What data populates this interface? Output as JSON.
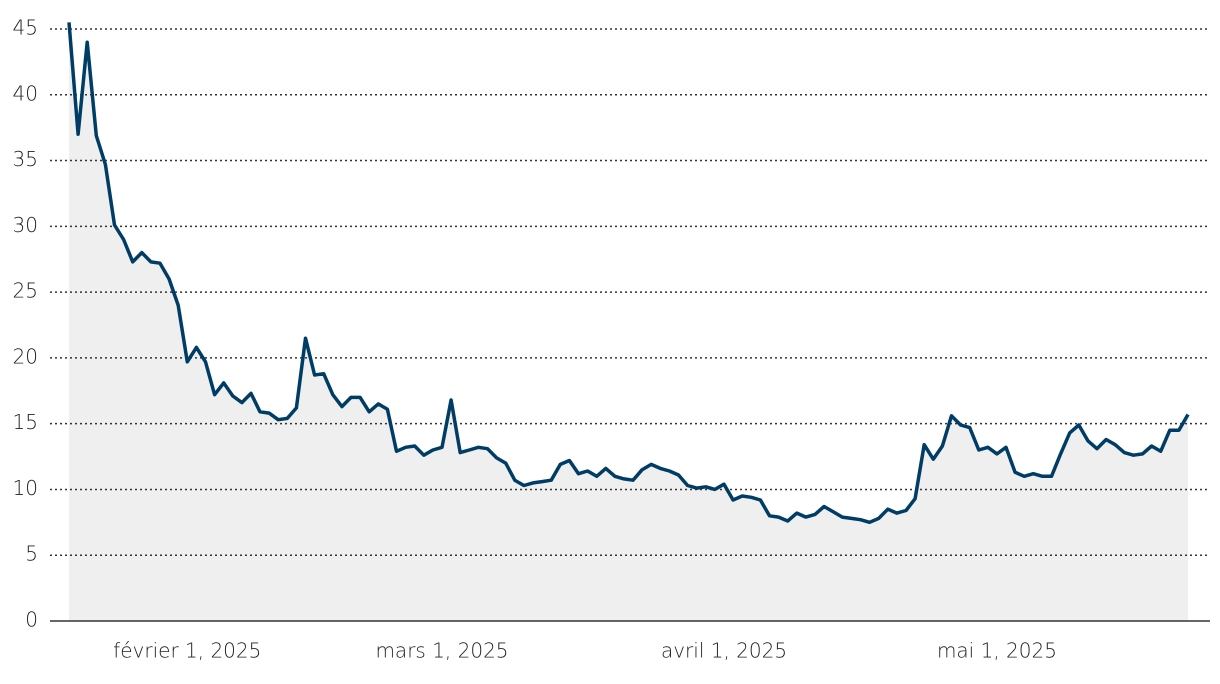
{
  "chart_data": {
    "type": "area",
    "x": [
      "2025-01-19",
      "2025-01-20",
      "2025-01-21",
      "2025-01-22",
      "2025-01-23",
      "2025-01-24",
      "2025-01-25",
      "2025-01-26",
      "2025-01-27",
      "2025-01-28",
      "2025-01-29",
      "2025-01-30",
      "2025-01-31",
      "2025-02-01",
      "2025-02-02",
      "2025-02-03",
      "2025-02-04",
      "2025-02-05",
      "2025-02-06",
      "2025-02-07",
      "2025-02-08",
      "2025-02-09",
      "2025-02-10",
      "2025-02-11",
      "2025-02-12",
      "2025-02-13",
      "2025-02-14",
      "2025-02-15",
      "2025-02-16",
      "2025-02-17",
      "2025-02-18",
      "2025-02-19",
      "2025-02-20",
      "2025-02-21",
      "2025-02-22",
      "2025-02-23",
      "2025-02-24",
      "2025-02-25",
      "2025-02-26",
      "2025-02-27",
      "2025-02-28",
      "2025-03-01",
      "2025-03-02",
      "2025-03-03",
      "2025-03-04",
      "2025-03-05",
      "2025-03-06",
      "2025-03-07",
      "2025-03-08",
      "2025-03-09",
      "2025-03-10",
      "2025-03-11",
      "2025-03-12",
      "2025-03-13",
      "2025-03-14",
      "2025-03-15",
      "2025-03-16",
      "2025-03-17",
      "2025-03-18",
      "2025-03-19",
      "2025-03-20",
      "2025-03-21",
      "2025-03-22",
      "2025-03-23",
      "2025-03-24",
      "2025-03-25",
      "2025-03-26",
      "2025-03-27",
      "2025-03-28",
      "2025-03-29",
      "2025-03-30",
      "2025-03-31",
      "2025-04-01",
      "2025-04-02",
      "2025-04-03",
      "2025-04-04",
      "2025-04-05",
      "2025-04-06",
      "2025-04-07",
      "2025-04-08",
      "2025-04-09",
      "2025-04-10",
      "2025-04-11",
      "2025-04-12",
      "2025-04-13",
      "2025-04-14",
      "2025-04-15",
      "2025-04-16",
      "2025-04-17",
      "2025-04-18",
      "2025-04-19",
      "2025-04-20",
      "2025-04-21",
      "2025-04-22",
      "2025-04-23",
      "2025-04-24",
      "2025-04-25",
      "2025-04-26",
      "2025-04-27",
      "2025-04-28",
      "2025-04-29",
      "2025-04-30",
      "2025-05-01",
      "2025-05-02",
      "2025-05-03",
      "2025-05-04",
      "2025-05-05",
      "2025-05-06",
      "2025-05-07",
      "2025-05-08",
      "2025-05-09",
      "2025-05-10",
      "2025-05-11",
      "2025-05-12",
      "2025-05-13",
      "2025-05-14",
      "2025-05-15",
      "2025-05-16",
      "2025-05-17",
      "2025-05-18",
      "2025-05-19",
      "2025-05-20",
      "2025-05-21",
      "2025-05-22"
    ],
    "values": [
      45.5,
      37,
      44,
      36.9,
      34.7,
      30.1,
      29,
      27.3,
      28,
      27.3,
      27.2,
      26,
      24,
      19.7,
      20.8,
      19.7,
      17.2,
      18.1,
      17.1,
      16.6,
      17.3,
      15.9,
      15.8,
      15.3,
      15.4,
      16.2,
      21.5,
      18.7,
      18.8,
      17.2,
      16.3,
      17,
      17,
      15.9,
      16.5,
      16.1,
      12.9,
      13.2,
      13.3,
      12.6,
      13,
      13.2,
      16.8,
      12.8,
      13,
      13.2,
      13.1,
      12.4,
      12,
      10.7,
      10.3,
      10.5,
      10.6,
      10.7,
      11.9,
      12.2,
      11.2,
      11.4,
      11,
      11.6,
      11,
      10.8,
      10.7,
      11.5,
      11.9,
      11.6,
      11.4,
      11.1,
      10.3,
      10.1,
      10.2,
      10,
      10.4,
      9.2,
      9.5,
      9.4,
      9.2,
      8,
      7.9,
      7.6,
      8.2,
      7.9,
      8.1,
      8.7,
      8.3,
      7.9,
      7.8,
      7.7,
      7.5,
      7.8,
      8.5,
      8.2,
      8.4,
      9.3,
      13.4,
      12.3,
      13.3,
      15.6,
      14.9,
      14.7,
      13,
      13.2,
      12.7,
      13.2,
      11.3,
      11,
      11.2,
      11,
      11,
      12.7,
      14.3,
      14.9,
      13.7,
      13.1,
      13.8,
      13.4,
      12.8,
      12.6,
      12.7,
      13.3,
      12.9,
      14.5,
      14.5,
      15.7
    ],
    "color": "#003d66",
    "fill": "#efefef",
    "xlim": [
      "2025-01-19",
      "2025-05-22"
    ],
    "xticks": [
      {
        "value": "2025-02-01",
        "label": "février 1, 2025"
      },
      {
        "value": "2025-03-01",
        "label": "mars 1, 2025"
      },
      {
        "value": "2025-04-01",
        "label": "avril 1, 2025"
      },
      {
        "value": "2025-05-01",
        "label": "mai 1, 2025"
      }
    ],
    "ylim": [
      0,
      45
    ],
    "yticks": [
      0,
      5,
      10,
      15,
      20,
      25,
      30,
      35,
      40,
      45
    ],
    "grid": true
  }
}
